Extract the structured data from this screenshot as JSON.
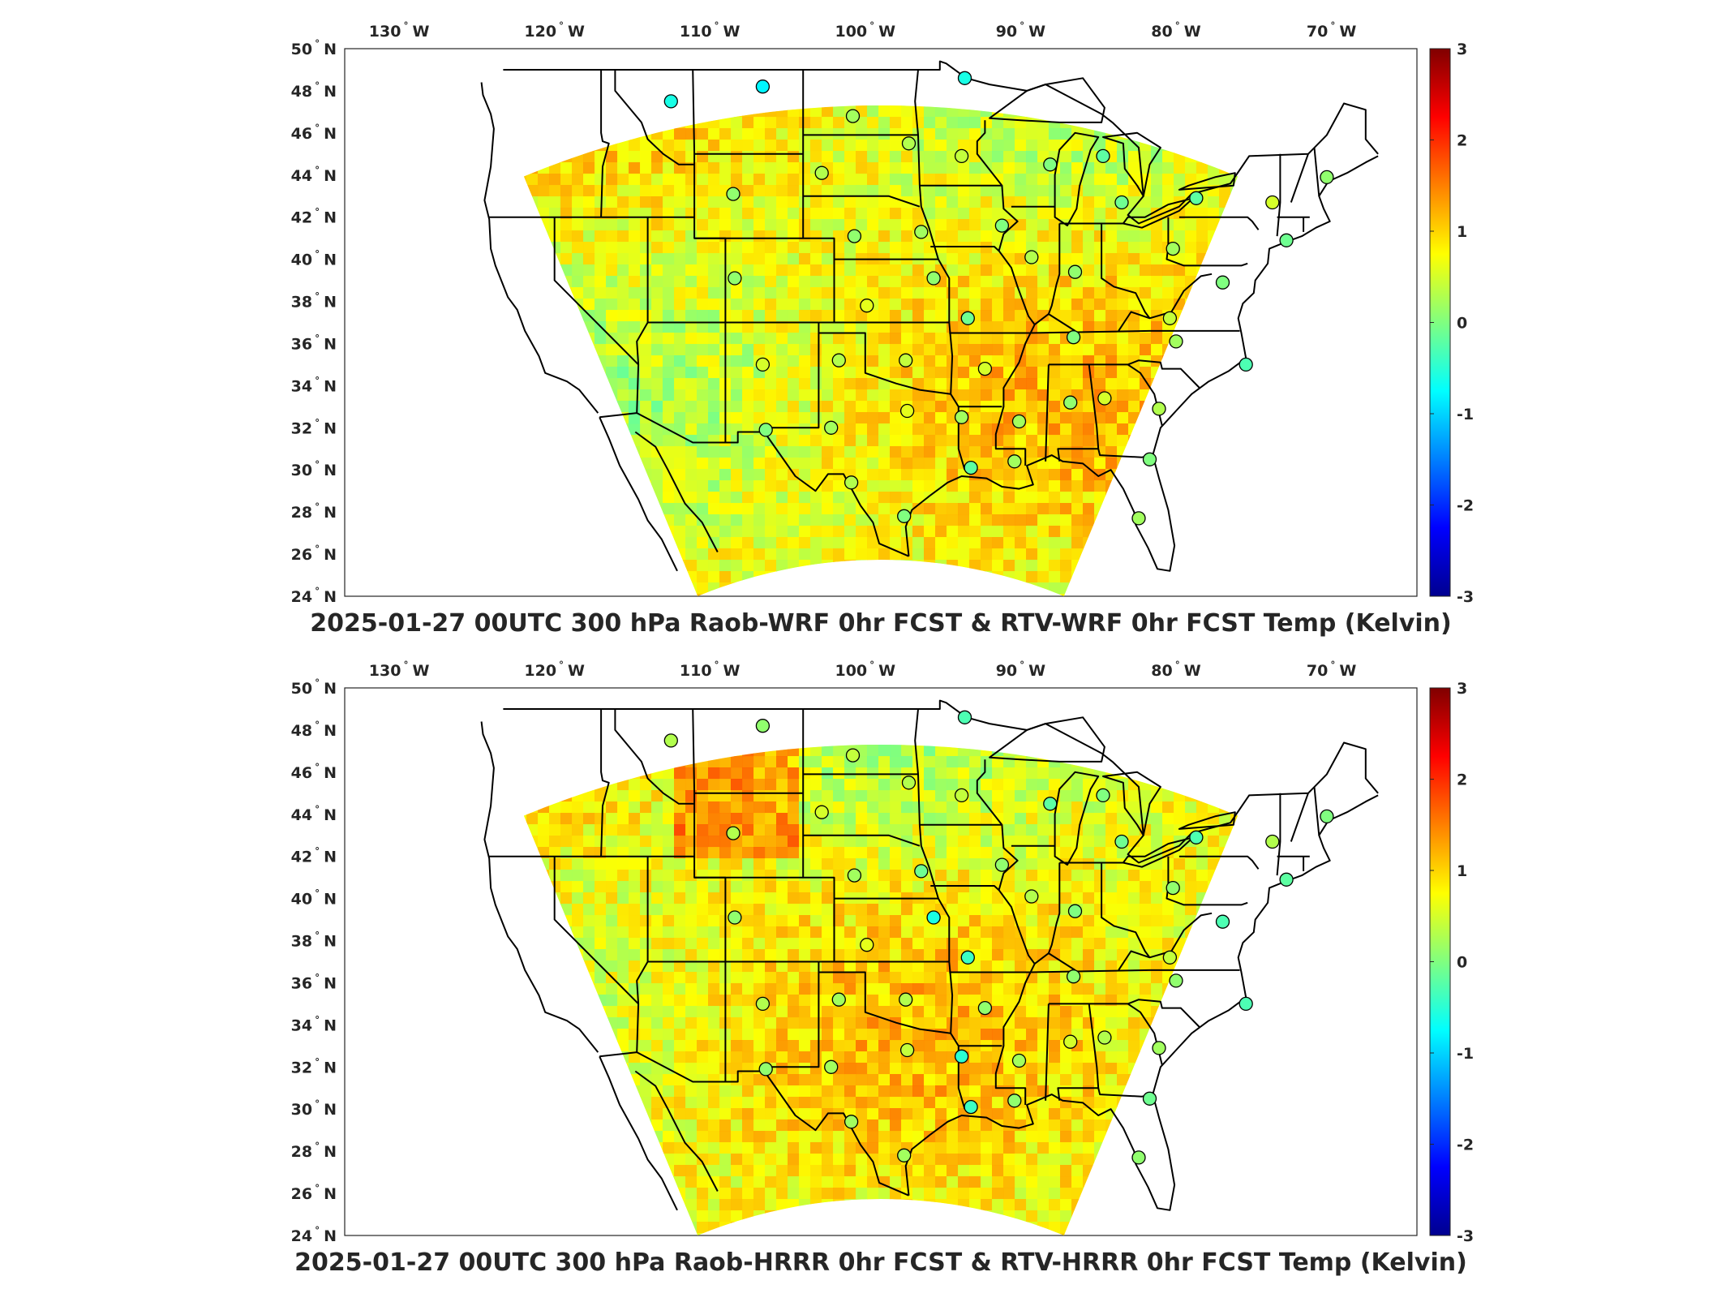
{
  "figure": {
    "panels": [
      {
        "id": "wrf",
        "title": "2025-01-27 00UTC 300 hPa Raob-WRF 0hr FCST & RTV-WRF 0hr FCST Temp (Kelvin)",
        "colorbar_ticks": [
          "3",
          "2",
          "1",
          "0",
          "-1",
          "-2",
          "-3"
        ]
      },
      {
        "id": "hrrr",
        "title": "2025-01-27 00UTC 300 hPa Raob-HRRR 0hr FCST & RTV-HRRR 0hr FCST Temp (Kelvin)",
        "colorbar_ticks": [
          "3",
          "2",
          "1",
          "0",
          "-1",
          "-2",
          "-3"
        ]
      }
    ],
    "lon_ticks": [
      {
        "lon": -130,
        "label": "130",
        "hemi": "W"
      },
      {
        "lon": -120,
        "label": "120",
        "hemi": "W"
      },
      {
        "lon": -110,
        "label": "110",
        "hemi": "W"
      },
      {
        "lon": -100,
        "label": "100",
        "hemi": "W"
      },
      {
        "lon": -90,
        "label": "90",
        "hemi": "W"
      },
      {
        "lon": -80,
        "label": "80",
        "hemi": "W"
      },
      {
        "lon": -70,
        "label": "70",
        "hemi": "W"
      }
    ],
    "lat_ticks": [
      {
        "lat": 50,
        "label": "50",
        "hemi": "N"
      },
      {
        "lat": 48,
        "label": "48",
        "hemi": "N"
      },
      {
        "lat": 46,
        "label": "46",
        "hemi": "N"
      },
      {
        "lat": 44,
        "label": "44",
        "hemi": "N"
      },
      {
        "lat": 42,
        "label": "42",
        "hemi": "N"
      },
      {
        "lat": 40,
        "label": "40",
        "hemi": "N"
      },
      {
        "lat": 38,
        "label": "38",
        "hemi": "N"
      },
      {
        "lat": 36,
        "label": "36",
        "hemi": "N"
      },
      {
        "lat": 34,
        "label": "34",
        "hemi": "N"
      },
      {
        "lat": 32,
        "label": "32",
        "hemi": "N"
      },
      {
        "lat": 30,
        "label": "30",
        "hemi": "N"
      },
      {
        "lat": 28,
        "label": "28",
        "hemi": "N"
      },
      {
        "lat": 26,
        "label": "26",
        "hemi": "N"
      },
      {
        "lat": 24,
        "label": "24",
        "hemi": "N"
      }
    ],
    "colormap": "jet",
    "color_range": [
      -3,
      3
    ],
    "raob_stations": [
      {
        "lon": -112.5,
        "lat": 47.5,
        "wrf": -0.6,
        "hrrr": 0.3
      },
      {
        "lon": -106.6,
        "lat": 48.2,
        "wrf": -0.8,
        "hrrr": 0.1
      },
      {
        "lon": -100.8,
        "lat": 46.8,
        "wrf": 0.2,
        "hrrr": 0.4
      },
      {
        "lon": -97.2,
        "lat": 45.5,
        "wrf": 0.3,
        "hrrr": 0.3
      },
      {
        "lon": -93.6,
        "lat": 48.6,
        "wrf": -0.6,
        "hrrr": -0.3
      },
      {
        "lon": -93.8,
        "lat": 44.9,
        "wrf": 0.4,
        "hrrr": 0.4
      },
      {
        "lon": -108.5,
        "lat": 43.1,
        "wrf": 0.1,
        "hrrr": 0.3
      },
      {
        "lon": -102.8,
        "lat": 44.1,
        "wrf": 0.3,
        "hrrr": 0.5
      },
      {
        "lon": -100.7,
        "lat": 41.1,
        "wrf": 0.1,
        "hrrr": 0.2
      },
      {
        "lon": -96.4,
        "lat": 41.3,
        "wrf": 0.2,
        "hrrr": -0.1
      },
      {
        "lon": -91.2,
        "lat": 41.6,
        "wrf": 0.0,
        "hrrr": 0.1
      },
      {
        "lon": -88.1,
        "lat": 44.5,
        "wrf": 0.0,
        "hrrr": -0.2
      },
      {
        "lon": -84.7,
        "lat": 44.9,
        "wrf": -0.2,
        "hrrr": 0.0
      },
      {
        "lon": -83.5,
        "lat": 42.7,
        "wrf": -0.1,
        "hrrr": -0.1
      },
      {
        "lon": -78.7,
        "lat": 42.9,
        "wrf": -0.2,
        "hrrr": -0.3
      },
      {
        "lon": -73.8,
        "lat": 42.7,
        "wrf": 0.5,
        "hrrr": 0.3
      },
      {
        "lon": -70.3,
        "lat": 43.9,
        "wrf": 0.1,
        "hrrr": 0.0
      },
      {
        "lon": -72.9,
        "lat": 40.9,
        "wrf": -0.1,
        "hrrr": -0.2
      },
      {
        "lon": -80.2,
        "lat": 40.5,
        "wrf": 0.2,
        "hrrr": 0.1
      },
      {
        "lon": -89.3,
        "lat": 40.1,
        "wrf": 0.3,
        "hrrr": 0.3
      },
      {
        "lon": -86.5,
        "lat": 39.4,
        "wrf": 0.1,
        "hrrr": 0.0
      },
      {
        "lon": -95.6,
        "lat": 39.1,
        "wrf": 0.1,
        "hrrr": -0.6
      },
      {
        "lon": -99.9,
        "lat": 37.8,
        "wrf": 0.6,
        "hrrr": 0.6
      },
      {
        "lon": -93.4,
        "lat": 37.2,
        "wrf": -0.1,
        "hrrr": -0.4
      },
      {
        "lon": -86.6,
        "lat": 36.3,
        "wrf": 0.0,
        "hrrr": 0.1
      },
      {
        "lon": -80.4,
        "lat": 37.2,
        "wrf": 0.4,
        "hrrr": 0.4
      },
      {
        "lon": -80.0,
        "lat": 36.1,
        "wrf": 0.2,
        "hrrr": 0.1
      },
      {
        "lon": -77.0,
        "lat": 38.9,
        "wrf": 0.0,
        "hrrr": -0.3
      },
      {
        "lon": -75.5,
        "lat": 35.0,
        "wrf": -0.3,
        "hrrr": -0.3
      },
      {
        "lon": -108.4,
        "lat": 39.1,
        "wrf": 0.1,
        "hrrr": 0.1
      },
      {
        "lon": -106.6,
        "lat": 35.0,
        "wrf": 0.5,
        "hrrr": 0.3
      },
      {
        "lon": -101.7,
        "lat": 35.2,
        "wrf": 0.3,
        "hrrr": 0.2
      },
      {
        "lon": -97.4,
        "lat": 35.2,
        "wrf": 0.4,
        "hrrr": 0.3
      },
      {
        "lon": -92.3,
        "lat": 34.8,
        "wrf": 0.5,
        "hrrr": 0.1
      },
      {
        "lon": -106.4,
        "lat": 31.9,
        "wrf": 0.0,
        "hrrr": 0.1
      },
      {
        "lon": -102.2,
        "lat": 32.0,
        "wrf": 0.2,
        "hrrr": 0.2
      },
      {
        "lon": -97.3,
        "lat": 32.8,
        "wrf": 0.6,
        "hrrr": 0.4
      },
      {
        "lon": -93.8,
        "lat": 32.5,
        "wrf": 0.2,
        "hrrr": -0.5
      },
      {
        "lon": -90.1,
        "lat": 32.3,
        "wrf": 0.2,
        "hrrr": 0.2
      },
      {
        "lon": -86.8,
        "lat": 33.2,
        "wrf": 0.1,
        "hrrr": 0.5
      },
      {
        "lon": -84.6,
        "lat": 33.4,
        "wrf": 0.5,
        "hrrr": 0.3
      },
      {
        "lon": -81.1,
        "lat": 32.9,
        "wrf": 0.3,
        "hrrr": 0.2
      },
      {
        "lon": -100.9,
        "lat": 29.4,
        "wrf": 0.3,
        "hrrr": 0.2
      },
      {
        "lon": -97.5,
        "lat": 27.8,
        "wrf": 0.0,
        "hrrr": 0.2
      },
      {
        "lon": -93.2,
        "lat": 30.1,
        "wrf": -0.2,
        "hrrr": -0.4
      },
      {
        "lon": -90.4,
        "lat": 30.4,
        "wrf": 0.2,
        "hrrr": 0.1
      },
      {
        "lon": -81.7,
        "lat": 30.5,
        "wrf": 0.0,
        "hrrr": -0.1
      },
      {
        "lon": -82.4,
        "lat": 27.7,
        "wrf": 0.2,
        "hrrr": 0.1
      }
    ]
  }
}
